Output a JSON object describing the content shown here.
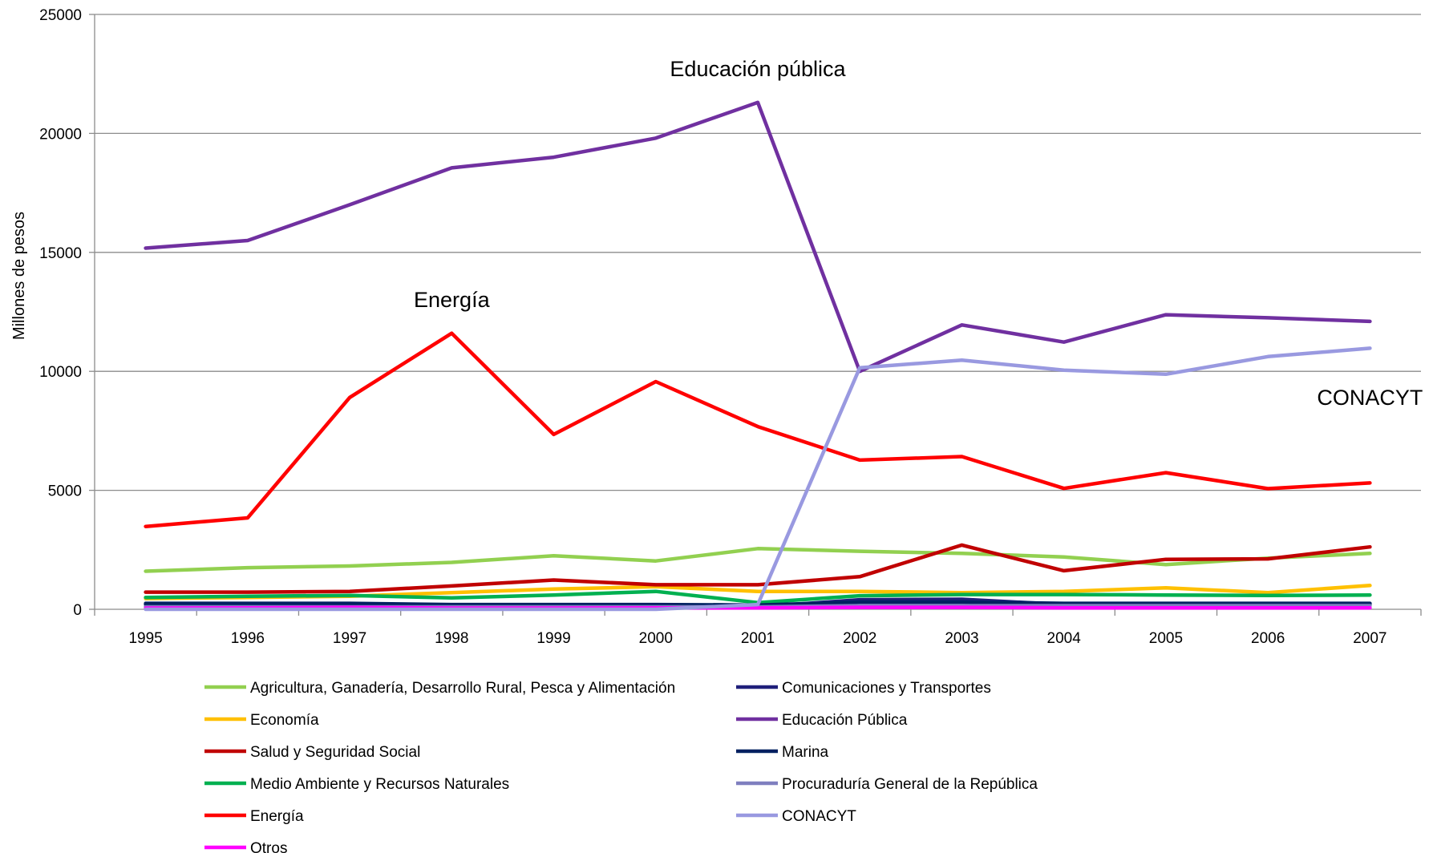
{
  "chart_data": {
    "type": "line",
    "title": "",
    "xlabel": "",
    "ylabel": "Millones de pesos",
    "ylim": [
      0,
      25000
    ],
    "yticks": [
      0,
      5000,
      10000,
      15000,
      20000,
      25000
    ],
    "grid": "horizontal",
    "legend_position": "bottom",
    "categories": [
      "1995",
      "1996",
      "1997",
      "1998",
      "1999",
      "2000",
      "2001",
      "2002",
      "2003",
      "2004",
      "2005",
      "2006",
      "2007"
    ],
    "series": [
      {
        "name": "Agricultura, Ganadería, Desarrollo Rural, Pesca y Alimentación",
        "color": "#92D050",
        "values": [
          1600,
          1750,
          1820,
          1970,
          2250,
          2030,
          2550,
          2440,
          2350,
          2200,
          1880,
          2150,
          2350
        ]
      },
      {
        "name": "Comunicaciones y Transportes",
        "color": "#1F1F7A",
        "values": [
          200,
          200,
          200,
          150,
          150,
          150,
          100,
          400,
          420,
          200,
          200,
          200,
          200
        ]
      },
      {
        "name": "Economía",
        "color": "#FFC000",
        "values": [
          450,
          500,
          550,
          700,
          850,
          950,
          750,
          750,
          700,
          750,
          900,
          700,
          1000
        ]
      },
      {
        "name": "Educación Pública",
        "color": "#7030A0",
        "values": [
          15180,
          15500,
          17000,
          18550,
          19000,
          19800,
          21300,
          10000,
          11950,
          11230,
          12380,
          12250,
          12100
        ]
      },
      {
        "name": "Salud y Seguridad Social",
        "color": "#C00000",
        "values": [
          720,
          720,
          750,
          980,
          1230,
          1030,
          1030,
          1370,
          2700,
          1620,
          2100,
          2120,
          2620
        ]
      },
      {
        "name": "Marina",
        "color": "#002060",
        "values": [
          250,
          250,
          250,
          200,
          200,
          200,
          180,
          300,
          300,
          250,
          250,
          250,
          250
        ]
      },
      {
        "name": "Medio Ambiente y Recursos Naturales",
        "color": "#00B050",
        "values": [
          500,
          550,
          580,
          480,
          600,
          750,
          280,
          570,
          620,
          620,
          600,
          580,
          600
        ]
      },
      {
        "name": "Procuraduría General de la República",
        "color": "#7F7FBF",
        "values": [
          100,
          100,
          100,
          100,
          100,
          100,
          100,
          150,
          150,
          150,
          150,
          150,
          150
        ]
      },
      {
        "name": "Energía",
        "color": "#FF0000",
        "values": [
          3480,
          3840,
          8900,
          11600,
          7350,
          9570,
          7680,
          6270,
          6420,
          5080,
          5740,
          5070,
          5310
        ]
      },
      {
        "name": "CONACYT",
        "color": "#9999E0",
        "values": [
          0,
          0,
          0,
          0,
          0,
          0,
          200,
          10150,
          10470,
          10050,
          9880,
          10620,
          10970
        ]
      },
      {
        "name": "Otros",
        "color": "#FF00FF",
        "values": [
          50,
          60,
          80,
          50,
          50,
          60,
          60,
          80,
          80,
          60,
          60,
          60,
          60
        ]
      }
    ],
    "annotations": [
      {
        "text": "Educación pública",
        "x": "2001",
        "y": 22400
      },
      {
        "text": "Energía",
        "x": "1998",
        "y": 12700
      },
      {
        "text": "CONACYT",
        "x": "2007",
        "y": 8600
      }
    ]
  }
}
